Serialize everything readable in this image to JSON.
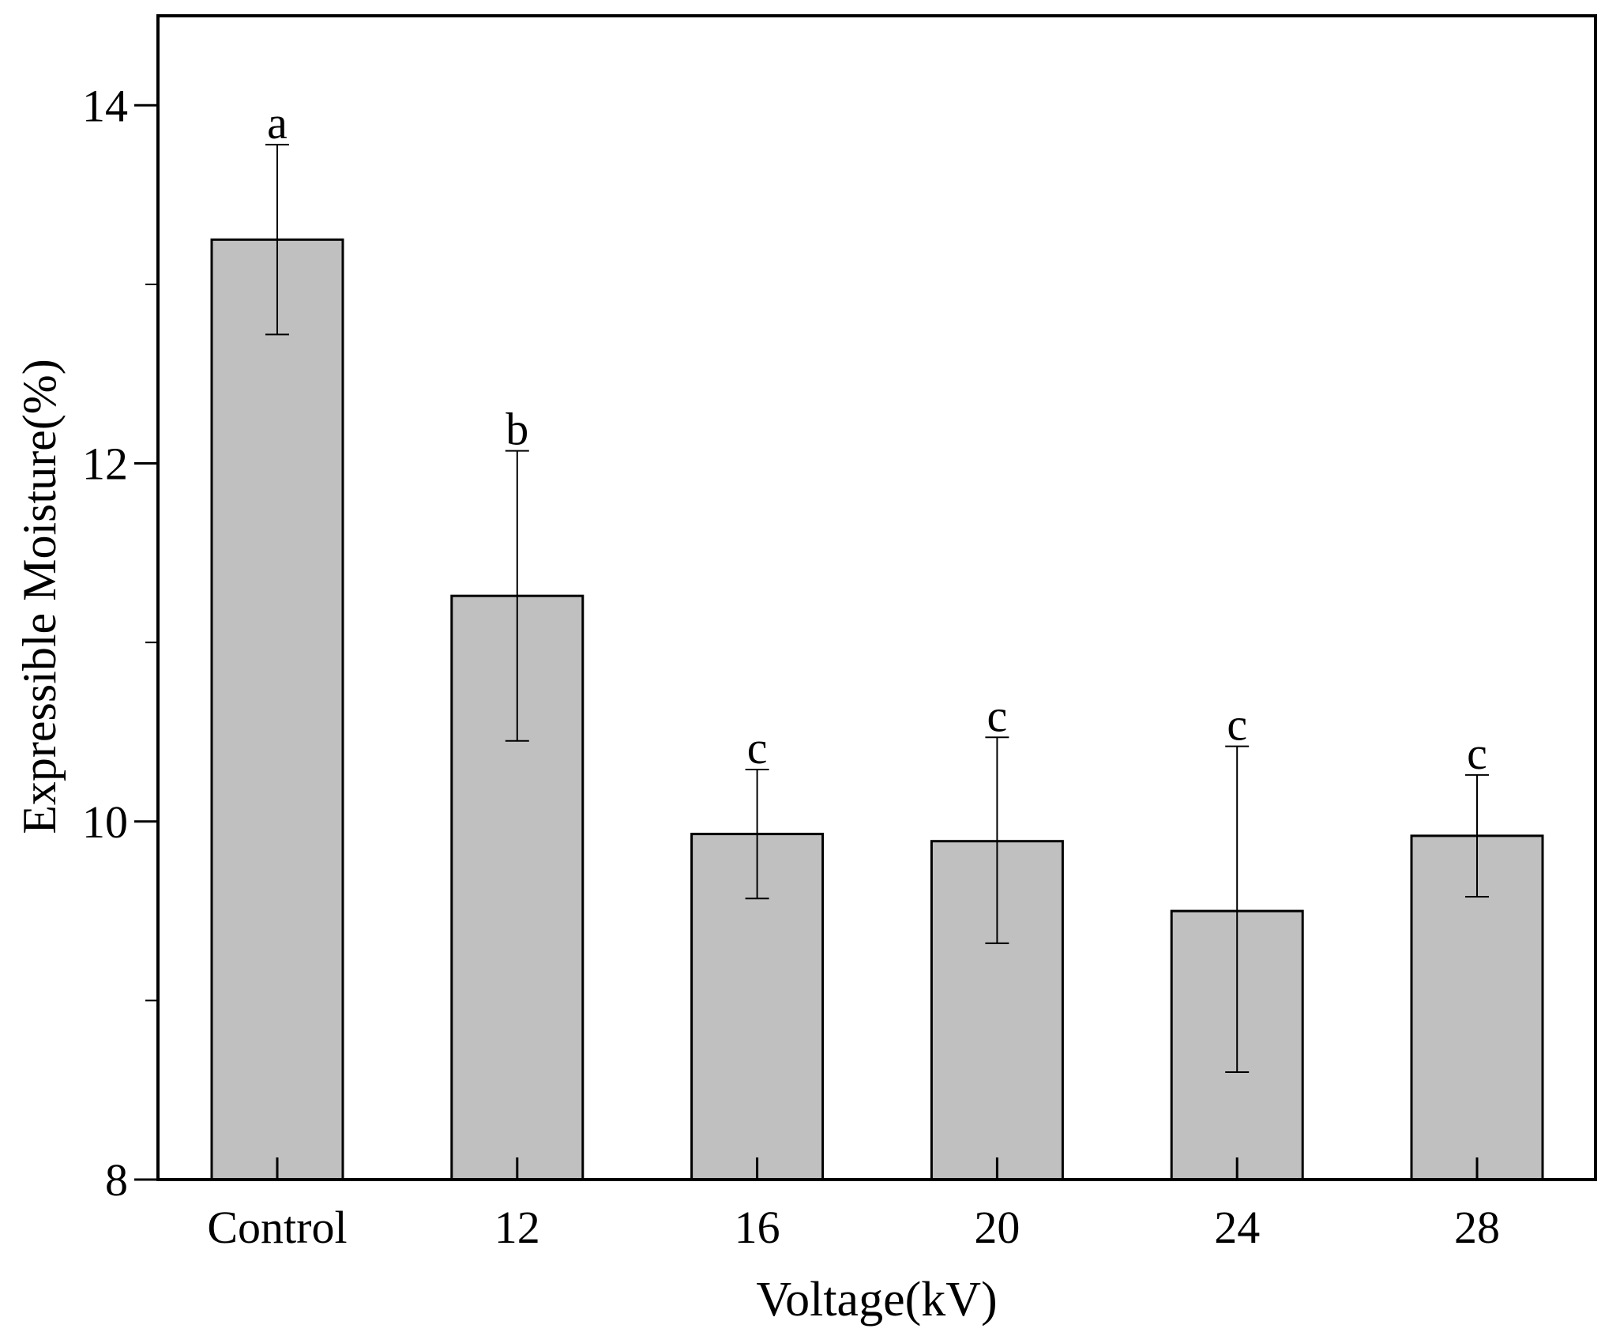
{
  "chart_data": {
    "type": "bar",
    "categories": [
      "Control",
      "12",
      "16",
      "20",
      "24",
      "28"
    ],
    "values": [
      13.25,
      11.26,
      9.93,
      9.89,
      9.5,
      9.92
    ],
    "error_high": [
      13.78,
      12.07,
      10.29,
      10.47,
      10.42,
      10.26
    ],
    "error_low": [
      12.72,
      10.45,
      9.57,
      9.32,
      8.6,
      9.58
    ],
    "significance_letters": [
      "a",
      "b",
      "c",
      "c",
      "c",
      "c"
    ],
    "title": "",
    "xlabel": "Voltage(kV)",
    "ylabel": "Expressible Moisture(%)",
    "ylim": [
      8,
      14.5
    ],
    "yticks": [
      8,
      10,
      12,
      14
    ],
    "ytick_labels": [
      "8",
      "10",
      "12",
      "14"
    ],
    "grid": false,
    "bar_color": "#c0c0c0",
    "edge_color": "#000000"
  }
}
